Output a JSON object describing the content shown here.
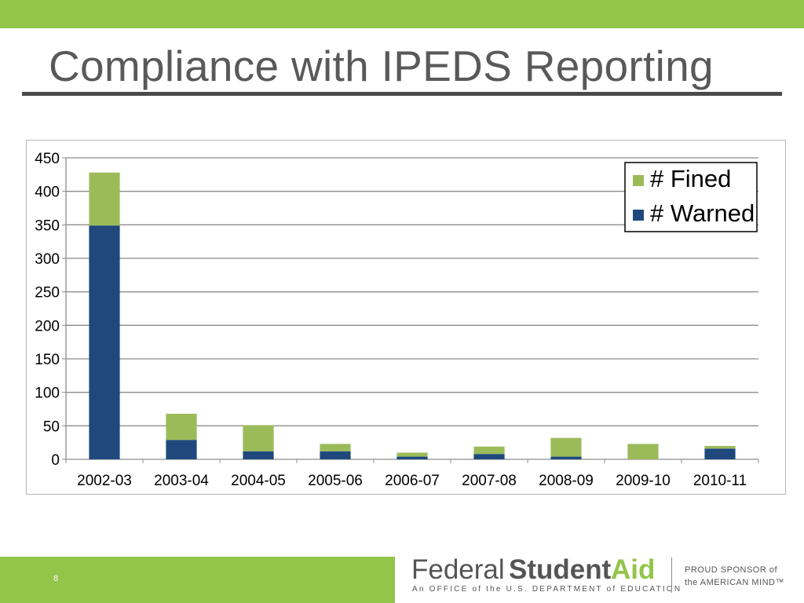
{
  "slide": {
    "title": "Compliance with IPEDS Reporting",
    "page_number": "8"
  },
  "colors": {
    "accent_green": "#92c54a",
    "warned_blue": "#1f497d",
    "fined_green": "#9bbb59",
    "title_gray": "#595959"
  },
  "chart_data": {
    "type": "bar",
    "stacked": true,
    "title": "",
    "xlabel": "",
    "ylabel": "",
    "categories": [
      "2002-03",
      "2003-04",
      "2004-05",
      "2005-06",
      "2006-07",
      "2007-08",
      "2008-09",
      "2009-10",
      "2010-11"
    ],
    "series": [
      {
        "name": "# Warned",
        "color": "#1f497d",
        "values": [
          349,
          29,
          12,
          12,
          4,
          8,
          4,
          0,
          16
        ]
      },
      {
        "name": "# Fined",
        "color": "#9bbb59",
        "values": [
          79,
          39,
          39,
          11,
          6,
          11,
          28,
          23,
          4
        ]
      }
    ],
    "ylim": [
      0,
      450
    ],
    "yticks": [
      "0",
      "50",
      "100",
      "150",
      "200",
      "250",
      "300",
      "350",
      "400",
      "450"
    ],
    "grid": true,
    "legend": "top-right",
    "legend_order": [
      "# Fined",
      "# Warned"
    ]
  },
  "footer": {
    "logo_federal": "Federal",
    "logo_student": "Student",
    "logo_aid": "Aid",
    "logo_office": "An OFFICE of the U.S. DEPARTMENT of EDUCATION",
    "sponsor_line1": "PROUD SPONSOR of",
    "sponsor_line2": "the AMERICAN MIND™"
  }
}
